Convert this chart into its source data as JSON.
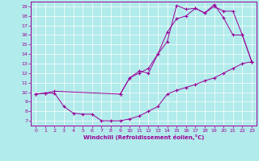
{
  "xlabel": "Windchill (Refroidissement éolien,°C)",
  "xlim": [
    -0.5,
    23.5
  ],
  "ylim": [
    6.5,
    19.5
  ],
  "yticks": [
    7,
    8,
    9,
    10,
    11,
    12,
    13,
    14,
    15,
    16,
    17,
    18,
    19
  ],
  "xticks": [
    0,
    1,
    2,
    3,
    4,
    5,
    6,
    7,
    8,
    9,
    10,
    11,
    12,
    13,
    14,
    15,
    16,
    17,
    18,
    19,
    20,
    21,
    22,
    23
  ],
  "color": "#990099",
  "bg_color": "#b2ebeb",
  "line1_x": [
    0,
    1,
    2,
    3,
    4,
    5,
    6,
    7,
    8,
    9,
    10,
    11,
    12,
    13,
    14,
    15,
    16,
    17,
    18,
    19,
    20,
    21,
    22,
    23
  ],
  "line1_y": [
    9.8,
    9.9,
    9.9,
    8.5,
    7.8,
    7.7,
    7.7,
    7.0,
    7.0,
    7.0,
    7.2,
    7.5,
    8.0,
    8.5,
    9.8,
    10.2,
    10.5,
    10.8,
    11.2,
    11.5,
    12.0,
    12.5,
    13.0,
    13.2
  ],
  "line2_x": [
    0,
    1,
    2,
    9,
    10,
    11,
    12,
    13,
    14,
    15,
    16,
    17,
    18,
    19,
    20,
    21,
    22,
    23
  ],
  "line2_y": [
    9.8,
    9.9,
    10.1,
    9.8,
    11.5,
    12.2,
    12.0,
    14.0,
    16.3,
    17.7,
    18.0,
    18.8,
    18.3,
    19.0,
    18.5,
    18.5,
    16.0,
    13.2
  ],
  "line3_x": [
    9,
    10,
    11,
    12,
    13,
    14,
    15,
    16,
    17,
    18,
    19,
    20,
    21,
    22,
    23
  ],
  "line3_y": [
    9.8,
    11.5,
    12.0,
    12.5,
    14.0,
    15.3,
    19.1,
    18.7,
    18.8,
    18.3,
    19.2,
    17.8,
    16.0,
    16.0,
    13.2
  ]
}
